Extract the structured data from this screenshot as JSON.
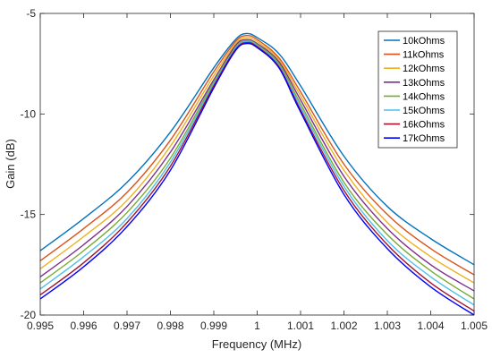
{
  "chart_data": {
    "type": "line",
    "title": "",
    "xlabel": "Frequency (MHz)",
    "ylabel": "Gain (dB)",
    "xlim": [
      0.995,
      1.005
    ],
    "ylim": [
      -20,
      -5
    ],
    "grid": false,
    "legend_position": "top-right",
    "x_ticks": [
      {
        "value": 0.995,
        "label": "0.995"
      },
      {
        "value": 0.996,
        "label": "0.996"
      },
      {
        "value": 0.997,
        "label": "0.997"
      },
      {
        "value": 0.998,
        "label": "0.998"
      },
      {
        "value": 0.999,
        "label": "0.999"
      },
      {
        "value": 1.0,
        "label": "1"
      },
      {
        "value": 1.001,
        "label": "1.001"
      },
      {
        "value": 1.002,
        "label": "1.002"
      },
      {
        "value": 1.003,
        "label": "1.003"
      },
      {
        "value": 1.004,
        "label": "1.004"
      },
      {
        "value": 1.005,
        "label": "1.005"
      }
    ],
    "y_ticks": [
      {
        "value": -20,
        "label": "-20"
      },
      {
        "value": -15,
        "label": "-15"
      },
      {
        "value": -10,
        "label": "-10"
      },
      {
        "value": -5,
        "label": "-5"
      }
    ],
    "x": [
      0.995,
      0.996,
      0.997,
      0.998,
      0.999,
      0.9995,
      0.99975,
      1.0,
      1.0005,
      1.001,
      1.002,
      1.003,
      1.004,
      1.005
    ],
    "series": [
      {
        "name": "10kOhms",
        "color": "#0072BD",
        "values": [
          -16.8,
          -15.2,
          -13.4,
          -10.9,
          -7.7,
          -6.3,
          -6.0,
          -6.2,
          -7.0,
          -8.6,
          -12.1,
          -14.6,
          -16.2,
          -17.5
        ]
      },
      {
        "name": "11kOhms",
        "color": "#D95319",
        "values": [
          -17.3,
          -15.7,
          -13.9,
          -11.3,
          -7.9,
          -6.4,
          -6.1,
          -6.3,
          -7.2,
          -8.9,
          -12.5,
          -15.0,
          -16.7,
          -18.0
        ]
      },
      {
        "name": "12kOhms",
        "color": "#EDB120",
        "values": [
          -17.7,
          -16.1,
          -14.3,
          -11.6,
          -8.1,
          -6.5,
          -6.2,
          -6.4,
          -7.3,
          -9.1,
          -12.8,
          -15.4,
          -17.1,
          -18.4
        ]
      },
      {
        "name": "13kOhms",
        "color": "#7E2F8E",
        "values": [
          -18.1,
          -16.5,
          -14.6,
          -11.9,
          -8.3,
          -6.6,
          -6.3,
          -6.5,
          -7.4,
          -9.3,
          -13.1,
          -15.7,
          -17.5,
          -18.8
        ]
      },
      {
        "name": "14kOhms",
        "color": "#77AC30",
        "values": [
          -18.4,
          -16.8,
          -14.9,
          -12.2,
          -8.4,
          -6.7,
          -6.35,
          -6.55,
          -7.5,
          -9.5,
          -13.4,
          -16.0,
          -17.8,
          -19.2
        ]
      },
      {
        "name": "15kOhms",
        "color": "#4DBEEE",
        "values": [
          -18.7,
          -17.1,
          -15.2,
          -12.4,
          -8.5,
          -6.75,
          -6.4,
          -6.6,
          -7.6,
          -9.65,
          -13.6,
          -16.3,
          -18.1,
          -19.5
        ]
      },
      {
        "name": "16kOhms",
        "color": "#A2142F",
        "values": [
          -19.0,
          -17.4,
          -15.4,
          -12.6,
          -8.6,
          -6.8,
          -6.45,
          -6.65,
          -7.65,
          -9.8,
          -13.8,
          -16.5,
          -18.4,
          -19.8
        ]
      },
      {
        "name": "17kOhms",
        "color": "#0000FF",
        "values": [
          -19.2,
          -17.6,
          -15.6,
          -12.8,
          -8.7,
          -6.85,
          -6.5,
          -6.7,
          -7.7,
          -9.9,
          -14.0,
          -16.7,
          -18.6,
          -20.0
        ]
      }
    ]
  }
}
